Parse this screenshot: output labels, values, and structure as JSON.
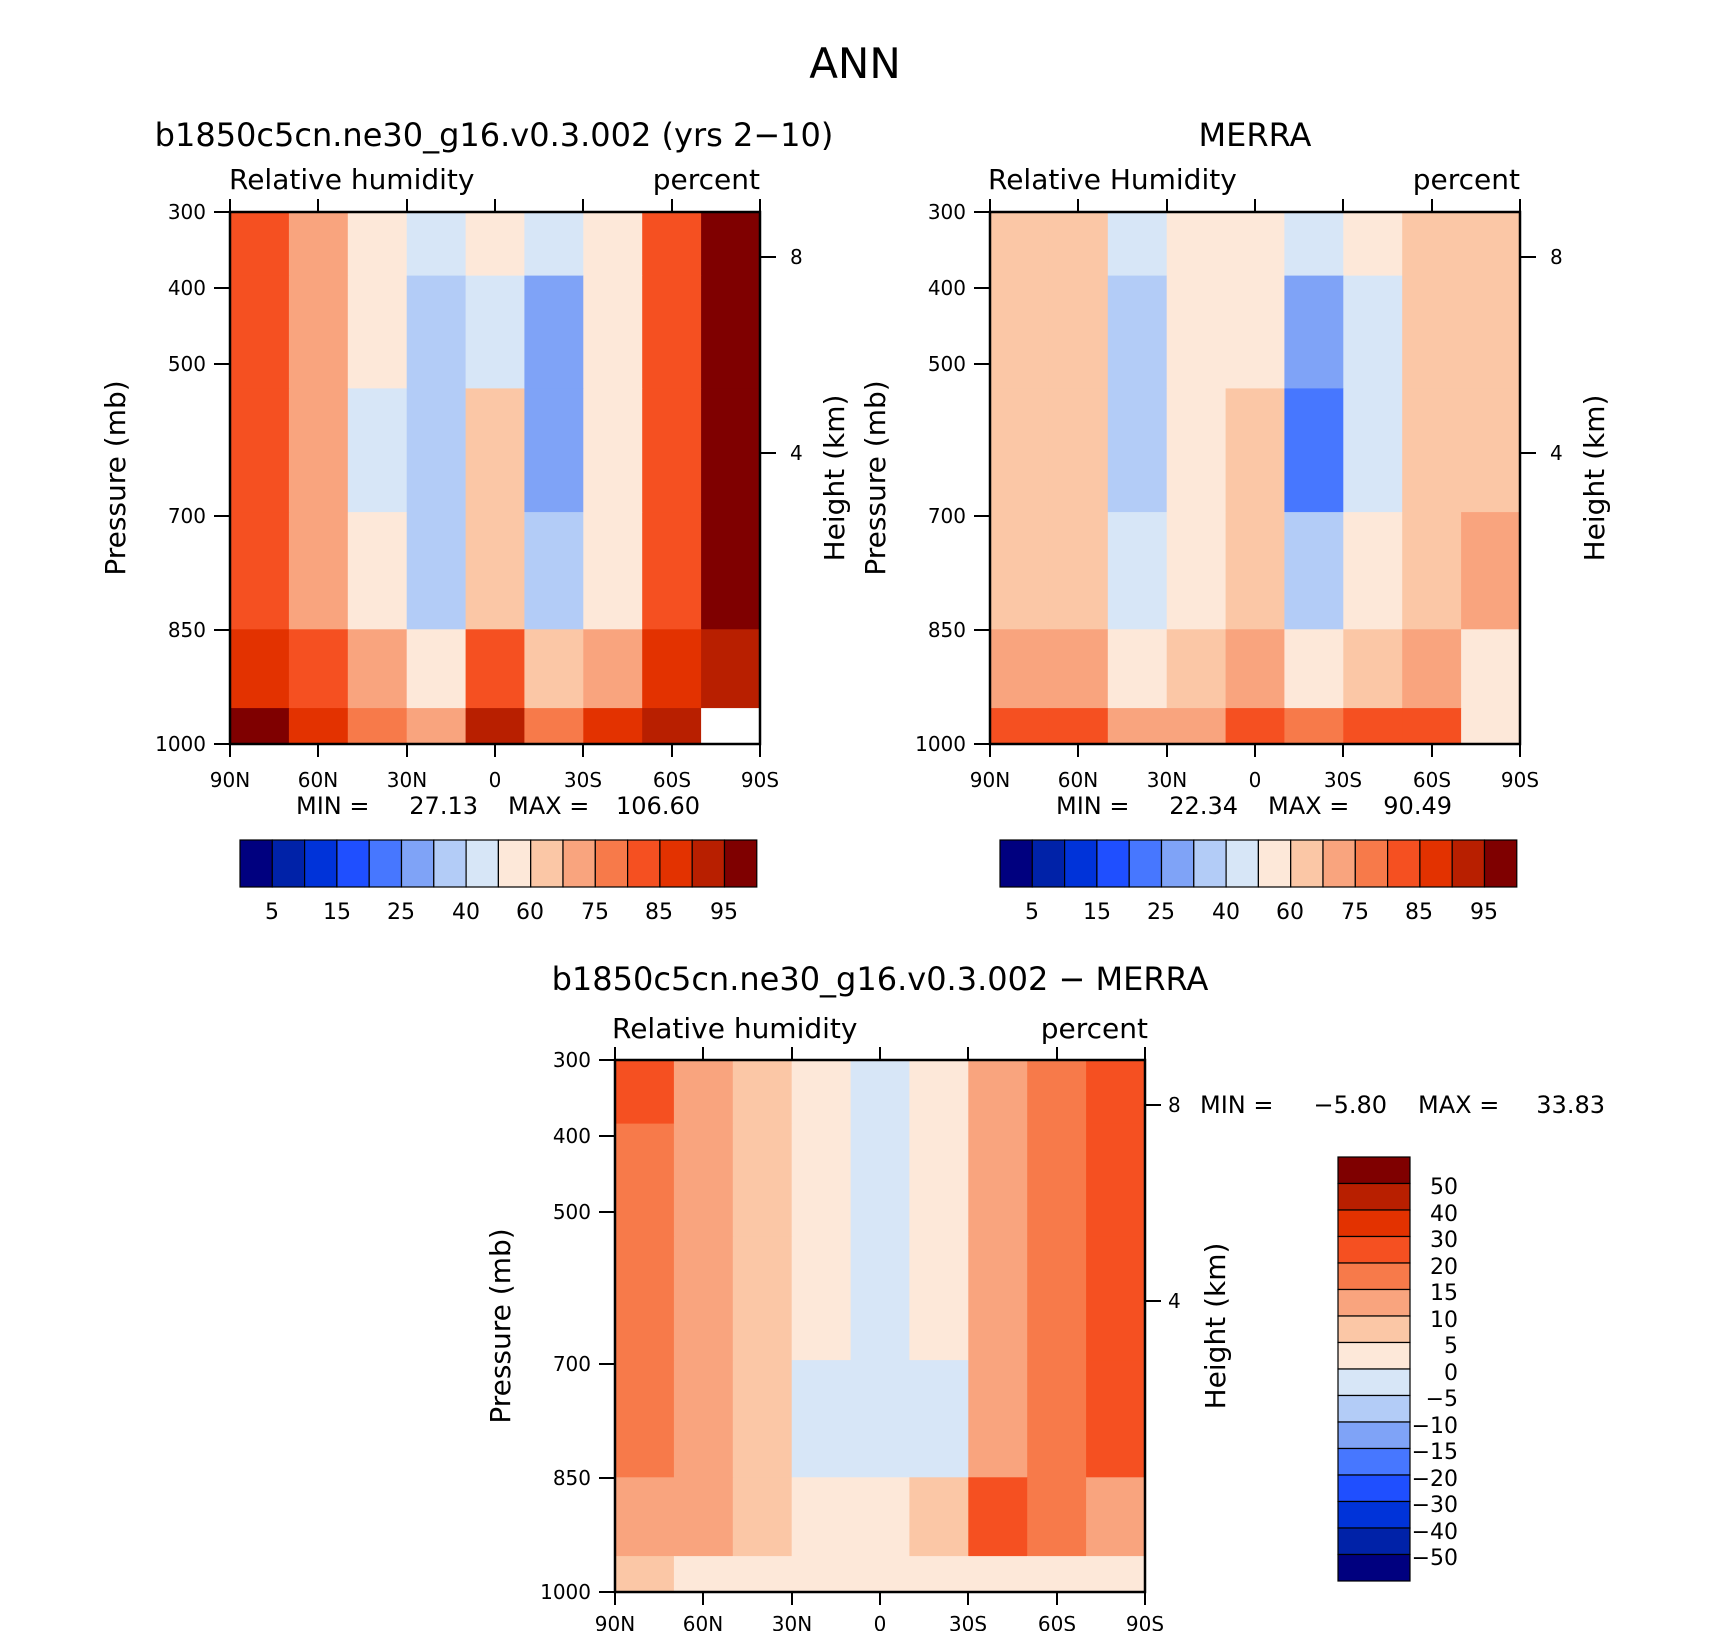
{
  "figure": {
    "title": "ANN"
  },
  "palettes": {
    "abs": [
      "#00007f",
      "#0022a8",
      "#0033d9",
      "#1f4fff",
      "#4777ff",
      "#7fa3f7",
      "#b3ccf7",
      "#d7e6f7",
      "#fde8d9",
      "#fbc7a6",
      "#f9a47e",
      "#f77a4a",
      "#f55021",
      "#e33200",
      "#b81f00",
      "#7f0000"
    ],
    "diff": [
      "#00007f",
      "#0022a8",
      "#0033d9",
      "#1f4fff",
      "#4777ff",
      "#7fa3f7",
      "#b3ccf7",
      "#d7e6f7",
      "#fde8d9",
      "#fbc7a6",
      "#f9a47e",
      "#f77a4a",
      "#f55021",
      "#e33200",
      "#b81f00",
      "#7f0000"
    ]
  },
  "panels": {
    "model": {
      "title": "b1850c5cn.ne30_g16.v0.3.002 (yrs 2−10)",
      "left_label": "Relative humidity",
      "right_label": "percent",
      "min_label": "MIN =",
      "min_value": "27.13",
      "max_label": "MAX =",
      "max_value": "106.60"
    },
    "obs": {
      "title": "MERRA",
      "left_label": "Relative Humidity",
      "right_label": "percent",
      "min_label": "MIN =",
      "min_value": "22.34",
      "max_label": "MAX =",
      "max_value": "90.49"
    },
    "diff": {
      "title": "b1850c5cn.ne30_g16.v0.3.002 − MERRA",
      "left_label": "Relative humidity",
      "right_label": "percent",
      "min_label": "MIN =",
      "min_value": "−5.80",
      "max_label": "MAX =",
      "max_value": "33.83"
    }
  },
  "axes": {
    "x_ticks": [
      "90N",
      "60N",
      "30N",
      "0",
      "30S",
      "60S",
      "90S"
    ],
    "y_ticks": [
      "300",
      "400",
      "500",
      "700",
      "850",
      "1000"
    ],
    "y_label": "Pressure (mb)",
    "height_ticks": [
      "8",
      "4"
    ],
    "height_label": "Height (km)"
  },
  "colorbars": {
    "abs_labels": [
      "5",
      "15",
      "25",
      "40",
      "60",
      "75",
      "85",
      "95"
    ],
    "diff_labels": [
      "50",
      "40",
      "30",
      "20",
      "15",
      "10",
      "5",
      "0",
      "−5",
      "−10",
      "−15",
      "−20",
      "−30",
      "−40",
      "−50"
    ]
  },
  "chart_data": [
    {
      "type": "heatmap",
      "title": "b1850c5cn.ne30_g16.v0.3.002 (yrs 2−10)",
      "subtitle": "Relative humidity",
      "units": "percent",
      "xlabel": "",
      "ylabel": "Pressure (mb)",
      "right_axis_label": "Height (km)",
      "x": [
        90,
        60,
        30,
        0,
        -30,
        -60,
        -90
      ],
      "x_tick_labels": [
        "90N",
        "60N",
        "30N",
        "0",
        "30S",
        "60S",
        "90S"
      ],
      "y_pressure_mb": [
        300,
        400,
        500,
        700,
        850,
        1000
      ],
      "y_log_scale": true,
      "contour_levels": [
        5,
        10,
        15,
        20,
        25,
        30,
        40,
        50,
        60,
        70,
        75,
        80,
        85,
        90,
        95
      ],
      "values_rh_percent": [
        [
          80,
          74,
          56,
          44,
          50,
          40,
          55,
          80,
          95
        ],
        [
          82,
          74,
          52,
          34,
          48,
          28,
          52,
          80,
          95
        ],
        [
          82,
          72,
          48,
          32,
          60,
          26,
          50,
          80,
          95
        ],
        [
          84,
          72,
          50,
          36,
          62,
          34,
          54,
          80,
          95
        ],
        [
          88,
          82,
          70,
          58,
          80,
          60,
          72,
          88,
          92
        ],
        [
          95,
          88,
          78,
          70,
          90,
          78,
          86,
          90,
          0
        ]
      ],
      "min": 27.13,
      "max": 106.6
    },
    {
      "type": "heatmap",
      "title": "MERRA",
      "subtitle": "Relative Humidity",
      "units": "percent",
      "xlabel": "",
      "ylabel": "Pressure (mb)",
      "right_axis_label": "Height (km)",
      "x": [
        90,
        60,
        30,
        0,
        -30,
        -60,
        -90
      ],
      "x_tick_labels": [
        "90N",
        "60N",
        "30N",
        "0",
        "30S",
        "60S",
        "90S"
      ],
      "y_pressure_mb": [
        300,
        400,
        500,
        700,
        850,
        1000
      ],
      "y_log_scale": true,
      "contour_levels": [
        5,
        10,
        15,
        20,
        25,
        30,
        40,
        50,
        60,
        70,
        75,
        80,
        85,
        90,
        95
      ],
      "values_rh_percent": [
        [
          62,
          62,
          46,
          50,
          58,
          42,
          52,
          62,
          62
        ],
        [
          62,
          62,
          34,
          50,
          58,
          26,
          46,
          62,
          62
        ],
        [
          64,
          62,
          32,
          50,
          62,
          22,
          44,
          62,
          64
        ],
        [
          66,
          64,
          42,
          54,
          68,
          36,
          50,
          66,
          70
        ],
        [
          74,
          70,
          58,
          64,
          74,
          58,
          62,
          72,
          50
        ],
        [
          82,
          80,
          74,
          74,
          84,
          78,
          80,
          84,
          50
        ]
      ],
      "min": 22.34,
      "max": 90.49
    },
    {
      "type": "heatmap",
      "title": "b1850c5cn.ne30_g16.v0.3.002 − MERRA",
      "subtitle": "Relative humidity",
      "units": "percent",
      "xlabel": "",
      "ylabel": "Pressure (mb)",
      "right_axis_label": "Height (km)",
      "x": [
        90,
        60,
        30,
        0,
        -30,
        -60,
        -90
      ],
      "x_tick_labels": [
        "90N",
        "60N",
        "30N",
        "0",
        "30S",
        "60S",
        "90S"
      ],
      "y_pressure_mb": [
        300,
        400,
        500,
        700,
        850,
        1000
      ],
      "y_log_scale": true,
      "contour_levels": [
        -50,
        -40,
        -30,
        -20,
        -15,
        -10,
        -5,
        0,
        5,
        10,
        15,
        20,
        30,
        40,
        50
      ],
      "values_rh_diff_percent": [
        [
          22,
          12,
          8,
          2,
          -2,
          4,
          10,
          18,
          26
        ],
        [
          18,
          12,
          8,
          2,
          -2,
          4,
          10,
          18,
          24
        ],
        [
          16,
          12,
          8,
          2,
          -2,
          4,
          14,
          18,
          22
        ],
        [
          16,
          12,
          6,
          -2,
          -4,
          -2,
          12,
          18,
          22
        ],
        [
          12,
          12,
          8,
          4,
          2,
          8,
          20,
          16,
          14
        ],
        [
          6,
          4,
          2,
          2,
          2,
          2,
          0,
          0,
          0
        ]
      ],
      "min": -5.8,
      "max": 33.83
    }
  ]
}
